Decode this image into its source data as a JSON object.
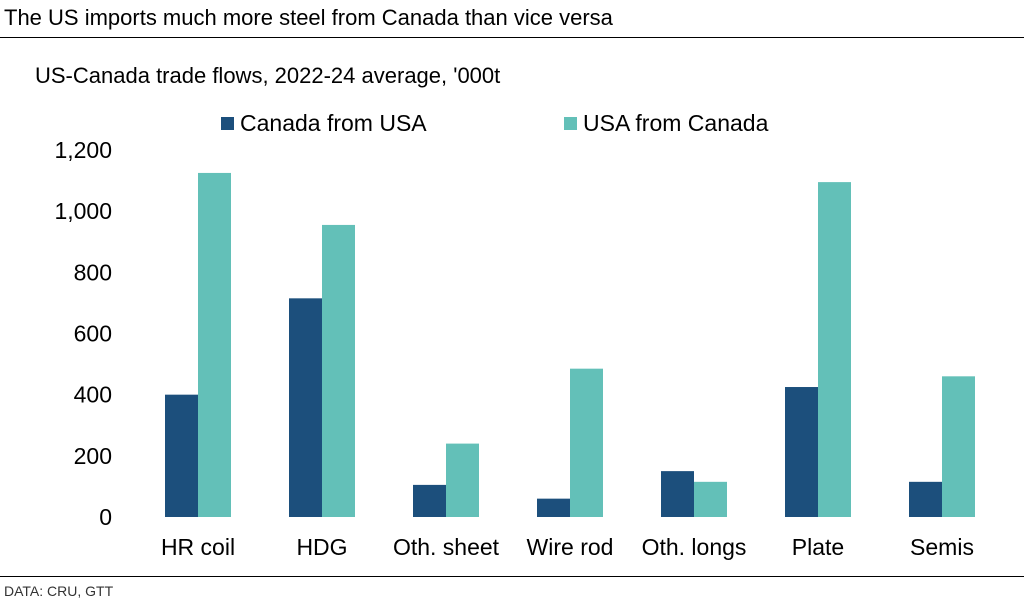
{
  "header": {
    "title": "The US imports much more steel from Canada than vice versa"
  },
  "footer": {
    "source": "DATA: CRU, GTT"
  },
  "colors": {
    "series0": "#1c4f7c",
    "series1": "#63c0b8"
  },
  "chart_data": {
    "type": "bar",
    "title": "US-Canada trade flows, 2022-24 average, '000t",
    "xlabel": "",
    "ylabel": "",
    "ylim": [
      0,
      1200
    ],
    "yticks": [
      0,
      200,
      400,
      600,
      800,
      1000,
      1200
    ],
    "ytick_labels": [
      "0",
      "200",
      "400",
      "600",
      "800",
      "1,000",
      "1,200"
    ],
    "grid": false,
    "legend_position": "top-center",
    "categories": [
      "HR coil",
      "HDG",
      "Oth. sheet",
      "Wire rod",
      "Oth. longs",
      "Plate",
      "Semis"
    ],
    "series": [
      {
        "name": "Canada from USA",
        "values": [
          400,
          715,
          105,
          60,
          150,
          425,
          115
        ]
      },
      {
        "name": "USA from Canada",
        "values": [
          1125,
          955,
          240,
          485,
          115,
          1095,
          460
        ]
      }
    ]
  }
}
